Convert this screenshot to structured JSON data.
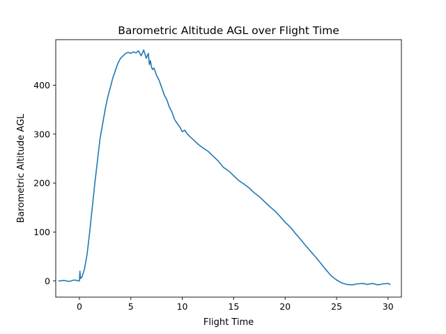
{
  "chart_data": {
    "type": "line",
    "title": "Barometric Altitude AGL over Flight Time",
    "xlabel": "Flight Time",
    "ylabel": "Barometric Altitude AGL",
    "xlim": [
      -2.3,
      31.3
    ],
    "ylim": [
      -33,
      493
    ],
    "xticks": [
      0,
      5,
      10,
      15,
      20,
      25,
      30
    ],
    "yticks": [
      0,
      100,
      200,
      300,
      400
    ],
    "grid": false,
    "legend": "none",
    "colors": {
      "line": "#1f77b4",
      "axes": "#000000",
      "background": "#ffffff"
    },
    "series": [
      {
        "x": [
          -2.0,
          -1.5,
          -1.0,
          -0.5,
          0.0,
          0.05,
          0.1,
          0.25,
          0.5,
          0.75,
          1.0,
          1.25,
          1.5,
          1.75,
          2.0,
          2.25,
          2.5,
          2.75,
          3.0,
          3.25,
          3.5,
          3.75,
          4.0,
          4.25,
          4.5,
          4.75,
          5.0,
          5.25,
          5.5,
          5.75,
          6.0,
          6.25,
          6.5,
          6.7,
          6.8,
          6.9,
          7.0,
          7.1,
          7.25,
          7.5,
          7.75,
          8.0,
          8.25,
          8.5,
          8.75,
          9.0,
          9.25,
          9.5,
          9.75,
          10.0,
          10.25,
          10.5,
          10.75,
          11.0,
          11.5,
          12.0,
          12.5,
          13.0,
          13.5,
          14.0,
          14.5,
          15.0,
          15.5,
          16.0,
          16.5,
          17.0,
          17.5,
          18.0,
          18.5,
          19.0,
          19.5,
          20.0,
          20.5,
          21.0,
          21.5,
          22.0,
          22.5,
          23.0,
          23.5,
          24.0,
          24.5,
          25.0,
          25.5,
          26.0,
          26.5,
          27.0,
          27.5,
          28.0,
          28.5,
          29.0,
          29.5,
          30.0,
          30.2
        ],
        "y": [
          0,
          1,
          -1,
          2,
          0,
          20,
          5,
          8,
          25,
          55,
          100,
          150,
          200,
          245,
          290,
          320,
          350,
          375,
          395,
          415,
          430,
          445,
          455,
          460,
          465,
          467,
          465,
          468,
          466,
          470,
          460,
          472,
          455,
          465,
          442,
          450,
          438,
          432,
          435,
          420,
          410,
          395,
          380,
          370,
          355,
          345,
          330,
          322,
          315,
          305,
          308,
          300,
          295,
          290,
          280,
          272,
          265,
          255,
          245,
          232,
          225,
          215,
          205,
          198,
          190,
          180,
          172,
          162,
          152,
          143,
          132,
          120,
          110,
          97,
          85,
          72,
          60,
          48,
          35,
          22,
          10,
          2,
          -4,
          -7,
          -8,
          -6,
          -5,
          -7,
          -5,
          -8,
          -6,
          -5,
          -7
        ]
      }
    ]
  }
}
